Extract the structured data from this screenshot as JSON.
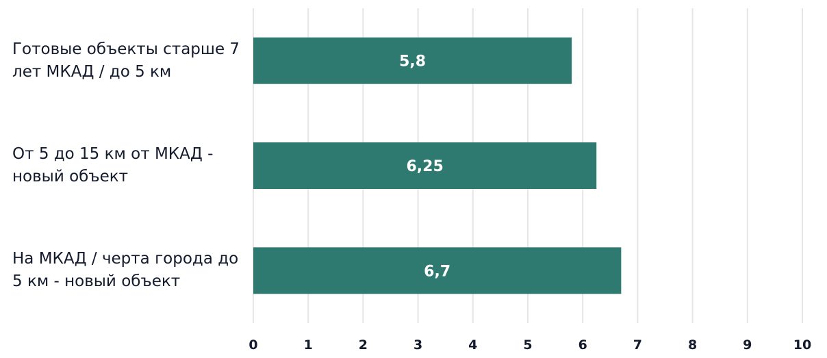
{
  "chart_data": {
    "type": "bar",
    "orientation": "horizontal",
    "categories": [
      "Готовые объекты старше 7 лет МКАД / до 5 км",
      "От 5 до 15 км от МКАД - новый объект",
      "На МКАД / черта города до 5 км - новый объект"
    ],
    "values": [
      5.8,
      6.25,
      6.7
    ],
    "value_labels": [
      "5,8",
      "6,25",
      "6,7"
    ],
    "color": "#2e7a70",
    "xlim": [
      0,
      10
    ],
    "xticks": [
      0,
      1,
      2,
      3,
      4,
      5,
      6,
      7,
      8,
      9,
      10
    ],
    "grid": true
  }
}
